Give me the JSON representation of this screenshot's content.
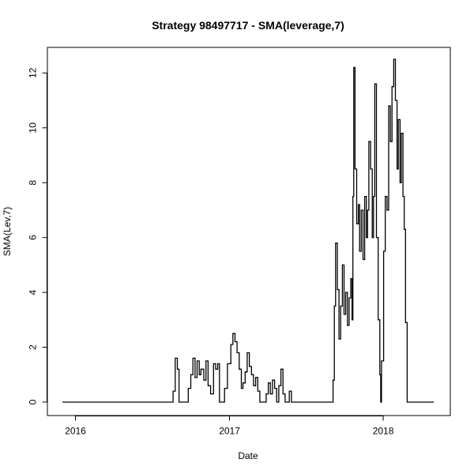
{
  "chart_data": {
    "type": "line",
    "line_style": "step",
    "title": "Strategy 98497717 - SMA(leverage,7)",
    "xlabel": "Date",
    "ylabel": "SMA(Lev,7)",
    "xlim": [
      "2015-11-20",
      "2018-05-20"
    ],
    "ylim": [
      0,
      12.5
    ],
    "x_ticks": [
      {
        "date": "2016-01-01",
        "label": "2016"
      },
      {
        "date": "2017-01-01",
        "label": "2017"
      },
      {
        "date": "2018-01-01",
        "label": "2018"
      }
    ],
    "y_ticks": [
      0,
      2,
      4,
      6,
      8,
      10,
      12
    ],
    "grid": false,
    "series": [
      {
        "color": "#000000",
        "points": [
          [
            "2015-12-01",
            0
          ],
          [
            "2016-08-15",
            0
          ],
          [
            "2016-08-20",
            0.4
          ],
          [
            "2016-08-25",
            1.6
          ],
          [
            "2016-08-30",
            1.2
          ],
          [
            "2016-09-03",
            0
          ],
          [
            "2016-09-20",
            0
          ],
          [
            "2016-09-25",
            0.5
          ],
          [
            "2016-10-01",
            1.0
          ],
          [
            "2016-10-06",
            1.6
          ],
          [
            "2016-10-11",
            0.9
          ],
          [
            "2016-10-16",
            1.5
          ],
          [
            "2016-10-21",
            1.0
          ],
          [
            "2016-10-25",
            1.2
          ],
          [
            "2016-11-01",
            0.8
          ],
          [
            "2016-11-06",
            1.5
          ],
          [
            "2016-11-11",
            0.6
          ],
          [
            "2016-11-17",
            0.3
          ],
          [
            "2016-11-24",
            1.4
          ],
          [
            "2016-11-29",
            1.2
          ],
          [
            "2016-12-04",
            1.4
          ],
          [
            "2016-12-08",
            0
          ],
          [
            "2016-12-20",
            0.5
          ],
          [
            "2016-12-27",
            1.4
          ],
          [
            "2017-01-04",
            2.1
          ],
          [
            "2017-01-09",
            2.5
          ],
          [
            "2017-01-14",
            2.2
          ],
          [
            "2017-01-19",
            1.8
          ],
          [
            "2017-01-24",
            1.2
          ],
          [
            "2017-01-29",
            0.5
          ],
          [
            "2017-02-02",
            0.7
          ],
          [
            "2017-02-07",
            1.1
          ],
          [
            "2017-02-12",
            1.8
          ],
          [
            "2017-02-17",
            1.3
          ],
          [
            "2017-02-22",
            1.0
          ],
          [
            "2017-02-27",
            0.6
          ],
          [
            "2017-03-04",
            0.9
          ],
          [
            "2017-03-09",
            0.4
          ],
          [
            "2017-03-14",
            0
          ],
          [
            "2017-03-24",
            0
          ],
          [
            "2017-03-29",
            0.3
          ],
          [
            "2017-04-03",
            0.7
          ],
          [
            "2017-04-08",
            0.3
          ],
          [
            "2017-04-13",
            0.8
          ],
          [
            "2017-04-18",
            0.5
          ],
          [
            "2017-04-23",
            0
          ],
          [
            "2017-04-28",
            0.6
          ],
          [
            "2017-05-03",
            1.2
          ],
          [
            "2017-05-08",
            0.3
          ],
          [
            "2017-05-13",
            0
          ],
          [
            "2017-05-23",
            0.4
          ],
          [
            "2017-05-28",
            0
          ],
          [
            "2017-09-01",
            0
          ],
          [
            "2017-09-04",
            0.8
          ],
          [
            "2017-09-07",
            3.5
          ],
          [
            "2017-09-10",
            5.8
          ],
          [
            "2017-09-14",
            4.1
          ],
          [
            "2017-09-18",
            2.3
          ],
          [
            "2017-09-22",
            3.5
          ],
          [
            "2017-09-26",
            5.0
          ],
          [
            "2017-09-30",
            3.2
          ],
          [
            "2017-10-04",
            4.0
          ],
          [
            "2017-10-08",
            2.8
          ],
          [
            "2017-10-12",
            3.8
          ],
          [
            "2017-10-16",
            4.5
          ],
          [
            "2017-10-19",
            3.0
          ],
          [
            "2017-10-21",
            7.5
          ],
          [
            "2017-10-23",
            12.2
          ],
          [
            "2017-10-26",
            8.5
          ],
          [
            "2017-10-30",
            6.5
          ],
          [
            "2017-11-03",
            7.2
          ],
          [
            "2017-11-06",
            5.5
          ],
          [
            "2017-11-10",
            7.0
          ],
          [
            "2017-11-14",
            5.2
          ],
          [
            "2017-11-18",
            7.5
          ],
          [
            "2017-11-22",
            6.0
          ],
          [
            "2017-11-25",
            7.0
          ],
          [
            "2017-11-28",
            9.5
          ],
          [
            "2017-12-02",
            8.5
          ],
          [
            "2017-12-06",
            6.0
          ],
          [
            "2017-12-09",
            7.5
          ],
          [
            "2017-12-12",
            11.6
          ],
          [
            "2017-12-16",
            6.0
          ],
          [
            "2017-12-20",
            3.0
          ],
          [
            "2017-12-24",
            1.0
          ],
          [
            "2017-12-26",
            0
          ],
          [
            "2017-12-28",
            1.5
          ],
          [
            "2018-01-02",
            5.5
          ],
          [
            "2018-01-06",
            7.5
          ],
          [
            "2018-01-10",
            7.0
          ],
          [
            "2018-01-14",
            10.8
          ],
          [
            "2018-01-18",
            9.5
          ],
          [
            "2018-01-22",
            11.5
          ],
          [
            "2018-01-26",
            12.5
          ],
          [
            "2018-01-30",
            11.0
          ],
          [
            "2018-02-03",
            8.5
          ],
          [
            "2018-02-06",
            10.3
          ],
          [
            "2018-02-10",
            8.0
          ],
          [
            "2018-02-13",
            9.8
          ],
          [
            "2018-02-17",
            7.5
          ],
          [
            "2018-02-20",
            6.3
          ],
          [
            "2018-02-23",
            2.9
          ],
          [
            "2018-02-27",
            0
          ],
          [
            "2018-05-01",
            0
          ]
        ]
      }
    ]
  }
}
